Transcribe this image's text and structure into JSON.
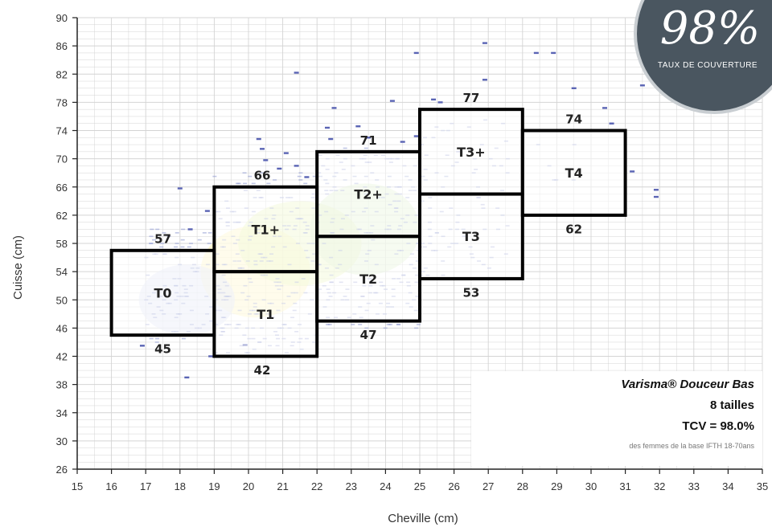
{
  "chart_data": {
    "type": "scatter",
    "xlabel": "Cheville (cm)",
    "ylabel": "Cuisse (cm)",
    "xlim": [
      15,
      35
    ],
    "ylim": [
      26,
      90
    ],
    "xticks": [
      15,
      16,
      17,
      18,
      19,
      20,
      21,
      22,
      23,
      24,
      25,
      26,
      27,
      28,
      29,
      30,
      31,
      32,
      33,
      34,
      35
    ],
    "yticks": [
      26,
      30,
      34,
      38,
      42,
      46,
      50,
      54,
      58,
      62,
      66,
      70,
      74,
      78,
      82,
      86,
      90
    ],
    "grid": true,
    "size_boxes": [
      {
        "name": "T0",
        "x": [
          16,
          19
        ],
        "y": [
          45,
          57
        ]
      },
      {
        "name": "T1",
        "x": [
          19,
          22
        ],
        "y": [
          42,
          54
        ]
      },
      {
        "name": "T1+",
        "x": [
          19,
          22
        ],
        "y": [
          54,
          66
        ]
      },
      {
        "name": "T2",
        "x": [
          22,
          25
        ],
        "y": [
          47,
          59
        ]
      },
      {
        "name": "T2+",
        "x": [
          22,
          25
        ],
        "y": [
          59,
          71
        ]
      },
      {
        "name": "T3",
        "x": [
          25,
          28
        ],
        "y": [
          53,
          65
        ]
      },
      {
        "name": "T3+",
        "x": [
          25,
          28
        ],
        "y": [
          65,
          77
        ]
      },
      {
        "name": "T4",
        "x": [
          28,
          31
        ],
        "y": [
          62,
          74
        ]
      }
    ],
    "bound_labels": [
      {
        "text": "57",
        "x": 17.5,
        "y": 58.6
      },
      {
        "text": "45",
        "x": 17.5,
        "y": 43.0
      },
      {
        "text": "66",
        "x": 20.4,
        "y": 67.6
      },
      {
        "text": "42",
        "x": 20.4,
        "y": 40.0
      },
      {
        "text": "71",
        "x": 23.5,
        "y": 72.6
      },
      {
        "text": "47",
        "x": 23.5,
        "y": 45.0
      },
      {
        "text": "77",
        "x": 26.5,
        "y": 78.6
      },
      {
        "text": "53",
        "x": 26.5,
        "y": 51.0
      },
      {
        "text": "74",
        "x": 29.5,
        "y": 75.6
      },
      {
        "text": "62",
        "x": 29.5,
        "y": 60.0
      }
    ],
    "outlier_points": [
      [
        18.0,
        65.8
      ],
      [
        18.8,
        62.6
      ],
      [
        18.3,
        60.0
      ],
      [
        18.2,
        39.0
      ],
      [
        19.9,
        43.6
      ],
      [
        18.9,
        42.0
      ],
      [
        16.9,
        43.5
      ],
      [
        21.4,
        82.2
      ],
      [
        20.4,
        71.4
      ],
      [
        20.5,
        69.8
      ],
      [
        20.9,
        68.6
      ],
      [
        21.1,
        70.8
      ],
      [
        21.4,
        69.0
      ],
      [
        21.7,
        67.4
      ],
      [
        22.5,
        77.2
      ],
      [
        24.2,
        78.2
      ],
      [
        22.3,
        74.4
      ],
      [
        23.2,
        74.6
      ],
      [
        22.4,
        72.8
      ],
      [
        24.5,
        72.4
      ],
      [
        24.9,
        73.2
      ],
      [
        25.4,
        78.4
      ],
      [
        25.6,
        78.0
      ],
      [
        24.9,
        85.0
      ],
      [
        26.9,
        86.4
      ],
      [
        26.9,
        81.2
      ],
      [
        28.4,
        85.0
      ],
      [
        28.9,
        85.0
      ],
      [
        29.5,
        80.0
      ],
      [
        30.4,
        77.2
      ],
      [
        30.6,
        75.0
      ],
      [
        31.2,
        68.2
      ],
      [
        31.5,
        80.4
      ],
      [
        31.9,
        65.6
      ],
      [
        31.9,
        64.6
      ],
      [
        20.3,
        72.8
      ],
      [
        23.5,
        73.0
      ]
    ]
  },
  "legend": {
    "product": "Varisma® Douceur Bas",
    "sizes": "8 tailles",
    "tcv": "TCV = 98.0%",
    "note": "des femmes de la base IFTH 18-70ans"
  },
  "badge": {
    "value": "98%",
    "caption": "TAUX DE COUVERTURE"
  },
  "colors": {
    "point": "#5a64b4",
    "box": "#000000",
    "grid": "#d4d4d4",
    "badge_bg": "#4a5660"
  }
}
